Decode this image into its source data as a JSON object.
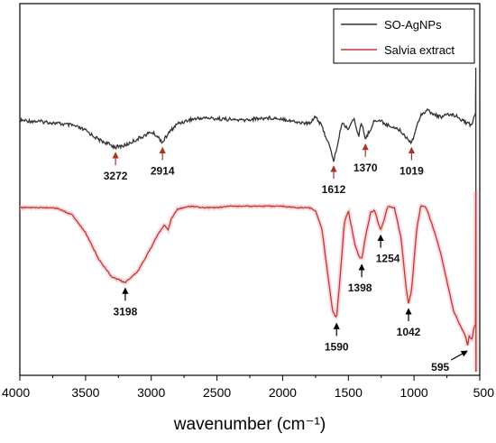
{
  "chart_data": {
    "type": "line",
    "xlabel": "wavenumber (cm⁻¹)",
    "xlim": [
      4000,
      500
    ],
    "x_ticks": [
      "4000",
      "3500",
      "3000",
      "2500",
      "2000",
      "1500",
      "1000",
      "500"
    ],
    "legend_position": "top-right",
    "series": [
      {
        "name": "SO-AgNPs",
        "color": "#333333",
        "points": [
          [
            4000,
            0.48
          ],
          [
            3900,
            0.47
          ],
          [
            3800,
            0.46
          ],
          [
            3700,
            0.44
          ],
          [
            3600,
            0.42
          ],
          [
            3500,
            0.36
          ],
          [
            3400,
            0.25
          ],
          [
            3300,
            0.18
          ],
          [
            3272,
            0.16
          ],
          [
            3200,
            0.18
          ],
          [
            3100,
            0.26
          ],
          [
            3000,
            0.34
          ],
          [
            2960,
            0.3
          ],
          [
            2914,
            0.22
          ],
          [
            2880,
            0.3
          ],
          [
            2850,
            0.36
          ],
          [
            2800,
            0.44
          ],
          [
            2700,
            0.49
          ],
          [
            2600,
            0.51
          ],
          [
            2500,
            0.5
          ],
          [
            2400,
            0.49
          ],
          [
            2300,
            0.48
          ],
          [
            2200,
            0.5
          ],
          [
            2100,
            0.51
          ],
          [
            2000,
            0.5
          ],
          [
            1900,
            0.46
          ],
          [
            1800,
            0.44
          ],
          [
            1750,
            0.53
          ],
          [
            1700,
            0.4
          ],
          [
            1650,
            0.2
          ],
          [
            1612,
            0.0
          ],
          [
            1580,
            0.2
          ],
          [
            1550,
            0.45
          ],
          [
            1500,
            0.38
          ],
          [
            1460,
            0.5
          ],
          [
            1420,
            0.3
          ],
          [
            1400,
            0.45
          ],
          [
            1370,
            0.26
          ],
          [
            1340,
            0.35
          ],
          [
            1300,
            0.48
          ],
          [
            1250,
            0.47
          ],
          [
            1200,
            0.42
          ],
          [
            1150,
            0.4
          ],
          [
            1100,
            0.35
          ],
          [
            1050,
            0.26
          ],
          [
            1019,
            0.22
          ],
          [
            1000,
            0.3
          ],
          [
            950,
            0.55
          ],
          [
            900,
            0.6
          ],
          [
            850,
            0.55
          ],
          [
            800,
            0.52
          ],
          [
            750,
            0.54
          ],
          [
            700,
            0.55
          ],
          [
            650,
            0.5
          ],
          [
            600,
            0.45
          ],
          [
            560,
            0.42
          ],
          [
            540,
            0.55
          ]
        ]
      },
      {
        "name": "Salvia extract",
        "color": "#c0392b",
        "points": [
          [
            4000,
            0.95
          ],
          [
            3900,
            0.95
          ],
          [
            3800,
            0.95
          ],
          [
            3750,
            0.95
          ],
          [
            3700,
            0.94
          ],
          [
            3600,
            0.9
          ],
          [
            3500,
            0.78
          ],
          [
            3400,
            0.6
          ],
          [
            3300,
            0.48
          ],
          [
            3198,
            0.44
          ],
          [
            3100,
            0.52
          ],
          [
            3000,
            0.68
          ],
          [
            2950,
            0.77
          ],
          [
            2900,
            0.83
          ],
          [
            2870,
            0.8
          ],
          [
            2850,
            0.87
          ],
          [
            2800,
            0.94
          ],
          [
            2700,
            0.96
          ],
          [
            2600,
            0.95
          ],
          [
            2500,
            0.95
          ],
          [
            2400,
            0.96
          ],
          [
            2300,
            0.96
          ],
          [
            2200,
            0.96
          ],
          [
            2100,
            0.96
          ],
          [
            2000,
            0.96
          ],
          [
            1900,
            0.95
          ],
          [
            1800,
            0.95
          ],
          [
            1750,
            0.93
          ],
          [
            1700,
            0.8
          ],
          [
            1650,
            0.45
          ],
          [
            1620,
            0.25
          ],
          [
            1590,
            0.2
          ],
          [
            1570,
            0.4
          ],
          [
            1530,
            0.85
          ],
          [
            1500,
            0.93
          ],
          [
            1450,
            0.7
          ],
          [
            1420,
            0.62
          ],
          [
            1398,
            0.6
          ],
          [
            1370,
            0.75
          ],
          [
            1330,
            0.92
          ],
          [
            1300,
            0.93
          ],
          [
            1270,
            0.84
          ],
          [
            1254,
            0.8
          ],
          [
            1230,
            0.86
          ],
          [
            1200,
            0.96
          ],
          [
            1150,
            0.95
          ],
          [
            1100,
            0.75
          ],
          [
            1060,
            0.4
          ],
          [
            1042,
            0.3
          ],
          [
            1020,
            0.38
          ],
          [
            980,
            0.8
          ],
          [
            950,
            0.96
          ],
          [
            920,
            0.96
          ],
          [
            900,
            0.93
          ],
          [
            850,
            0.8
          ],
          [
            800,
            0.65
          ],
          [
            750,
            0.45
          ],
          [
            700,
            0.25
          ],
          [
            650,
            0.15
          ],
          [
            620,
            0.1
          ],
          [
            600,
            0.05
          ],
          [
            595,
            0.0
          ],
          [
            580,
            0.08
          ],
          [
            560,
            0.05
          ],
          [
            540,
            0.15
          ]
        ]
      }
    ],
    "annotations": [
      {
        "label": "3272",
        "series": 0,
        "x": 3272,
        "arrow_color": "#a93226"
      },
      {
        "label": "2914",
        "series": 0,
        "x": 2914,
        "arrow_color": "#a93226"
      },
      {
        "label": "1612",
        "series": 0,
        "x": 1612,
        "arrow_color": "#a93226"
      },
      {
        "label": "1370",
        "series": 0,
        "x": 1370,
        "arrow_color": "#a93226"
      },
      {
        "label": "1019",
        "series": 0,
        "x": 1019,
        "arrow_color": "#a93226"
      },
      {
        "label": "3198",
        "series": 1,
        "x": 3198,
        "arrow_color": "#000000"
      },
      {
        "label": "1590",
        "series": 1,
        "x": 1590,
        "arrow_color": "#000000"
      },
      {
        "label": "1398",
        "series": 1,
        "x": 1398,
        "arrow_color": "#000000"
      },
      {
        "label": "1254",
        "series": 1,
        "x": 1254,
        "arrow_color": "#000000"
      },
      {
        "label": "1042",
        "series": 1,
        "x": 1042,
        "arrow_color": "#000000"
      },
      {
        "label": "595",
        "series": 1,
        "x": 595,
        "arrow_color": "#000000"
      }
    ]
  }
}
